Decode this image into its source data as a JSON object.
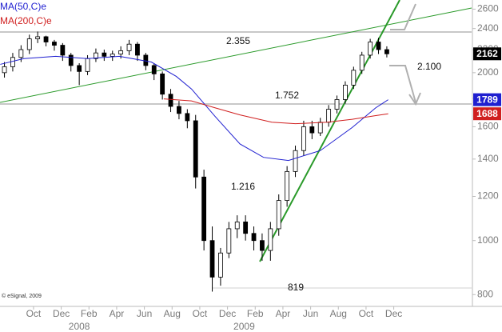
{
  "chart_data": {
    "type": "candlestick",
    "x": [
      -2.1,
      -1.5,
      -0.9,
      -0.3,
      0.3,
      0.9,
      1.5,
      2.1,
      2.7,
      3.3,
      3.9,
      4.5,
      5.1,
      5.7,
      6.3,
      6.9,
      7.5,
      8.1,
      8.7,
      9.3,
      9.9,
      10.5,
      11.1,
      11.7,
      12.3,
      12.9,
      13.5,
      14.1,
      14.7,
      15.3,
      15.9,
      16.5,
      17.1,
      17.7,
      18.3,
      18.9,
      19.5,
      20.1,
      20.7,
      21.3,
      21.9,
      22.5,
      23.1,
      23.7,
      24.3,
      24.9,
      25.5
    ],
    "open": [
      2000,
      2050,
      2130,
      2200,
      2300,
      2320,
      2270,
      2240,
      2150,
      2060,
      2010,
      2120,
      2170,
      2140,
      2160,
      2190,
      2250,
      2150,
      2060,
      1990,
      1830,
      1740,
      1690,
      1640,
      1300,
      1000,
      860,
      950,
      1050,
      1080,
      1030,
      1000,
      960,
      1050,
      1180,
      1330,
      1450,
      1600,
      1560,
      1630,
      1720,
      1790,
      1900,
      2020,
      2150,
      2270,
      2200
    ],
    "high": [
      2090,
      2170,
      2240,
      2340,
      2370,
      2330,
      2290,
      2260,
      2170,
      2080,
      2150,
      2210,
      2200,
      2190,
      2230,
      2290,
      2270,
      2170,
      2080,
      2010,
      1870,
      1780,
      1720,
      1680,
      1340,
      1060,
      970,
      1080,
      1110,
      1110,
      1060,
      1030,
      1080,
      1210,
      1360,
      1480,
      1640,
      1640,
      1660,
      1750,
      1820,
      1930,
      2050,
      2180,
      2300,
      2310,
      2230
    ],
    "low": [
      1960,
      2010,
      2090,
      2160,
      2260,
      2230,
      2190,
      2100,
      2010,
      1900,
      1980,
      2090,
      2100,
      2100,
      2120,
      2150,
      2100,
      2020,
      1940,
      1790,
      1700,
      1650,
      1590,
      1240,
      960,
      810,
      830,
      930,
      1010,
      1000,
      960,
      920,
      920,
      1020,
      1150,
      1300,
      1420,
      1520,
      1540,
      1600,
      1690,
      1760,
      1870,
      1990,
      2120,
      2160,
      2130
    ],
    "close": [
      2050,
      2130,
      2200,
      2300,
      2320,
      2270,
      2240,
      2150,
      2060,
      2010,
      2120,
      2170,
      2140,
      2160,
      2190,
      2250,
      2150,
      2060,
      1990,
      1830,
      1740,
      1690,
      1640,
      1300,
      1000,
      860,
      950,
      1050,
      1080,
      1030,
      1000,
      960,
      1050,
      1180,
      1330,
      1450,
      1600,
      1560,
      1630,
      1720,
      1790,
      1900,
      2020,
      2150,
      2270,
      2200,
      2162
    ],
    "up_color": "#ffffff",
    "down_color": "#000000",
    "last_color": "#000000",
    "overlays": [
      {
        "name": "MA(50,C)e",
        "color": "#1f1fd0",
        "x": [
          -2.4,
          -0.7,
          1.6,
          3.9,
          6.2,
          8.5,
          10.3,
          11.4,
          13.1,
          14.9,
          16.6,
          18.4,
          20.7,
          23.0,
          24.7,
          25.6
        ],
        "values": [
          2070,
          2120,
          2140,
          2120,
          2140,
          2090,
          1970,
          1870,
          1670,
          1490,
          1410,
          1392,
          1450,
          1595,
          1730,
          1789
        ]
      },
      {
        "name": "MA(200,C)e",
        "color": "#d01f1f",
        "x": [
          9.4,
          11.4,
          13.1,
          14.9,
          17.2,
          18.9,
          21.2,
          23.0,
          24.7,
          25.6
        ],
        "values": [
          1795,
          1780,
          1730,
          1680,
          1630,
          1620,
          1630,
          1650,
          1675,
          1688
        ]
      }
    ],
    "log_scale": true,
    "ylim": [
      762,
      2700
    ],
    "yticks": [
      800,
      1000,
      1200,
      1400,
      1600,
      1800,
      2000,
      2200,
      2400,
      2600
    ],
    "xlim": [
      -2.42,
      31.62
    ],
    "xticks": [
      {
        "value": 0,
        "label": "Oct"
      },
      {
        "value": 2,
        "label": "Dec"
      },
      {
        "value": 4,
        "label": "Feb"
      },
      {
        "value": 6,
        "label": "Apr"
      },
      {
        "value": 8,
        "label": "Jun"
      },
      {
        "value": 10,
        "label": "Aug"
      },
      {
        "value": 12,
        "label": "Oct"
      },
      {
        "value": 14,
        "label": "Dec"
      },
      {
        "value": 16,
        "label": "Feb"
      },
      {
        "value": 18,
        "label": "Apr"
      },
      {
        "value": 20,
        "label": "Jun"
      },
      {
        "value": 22,
        "label": "Aug"
      },
      {
        "value": 24,
        "label": "Oct"
      },
      {
        "value": 26,
        "label": "Dec"
      }
    ],
    "x_group_labels": [
      {
        "value": 3.3,
        "label": "2008"
      },
      {
        "value": 15.2,
        "label": "2009"
      }
    ],
    "annotations": [
      "2.355",
      "2.100",
      "1.752",
      "1.216",
      "819"
    ],
    "credit": "© eSignal, 2009"
  }
}
